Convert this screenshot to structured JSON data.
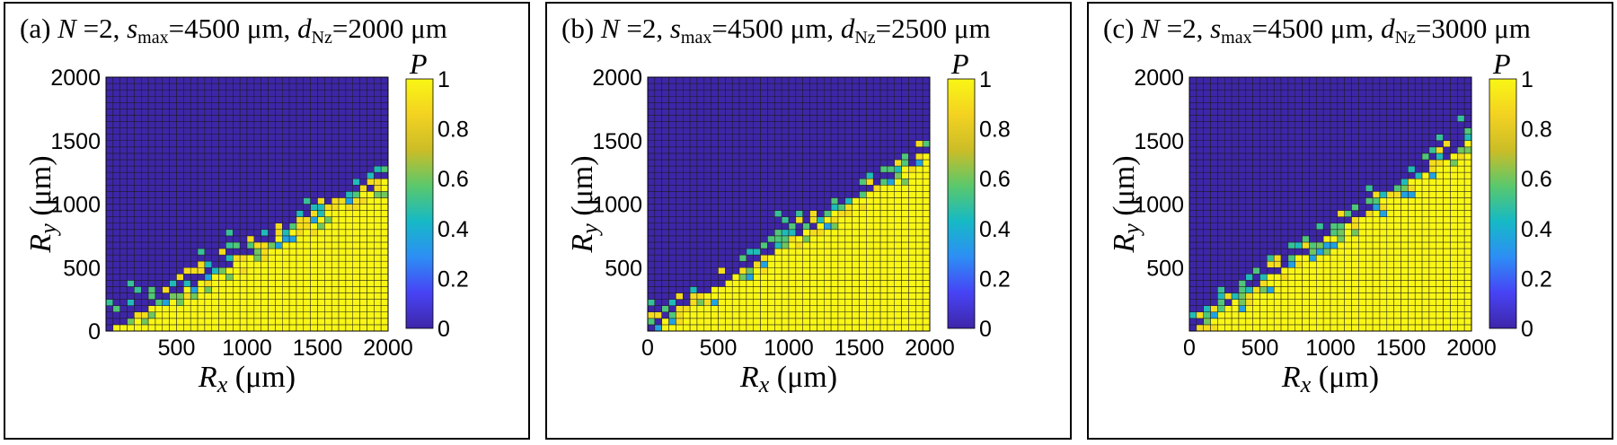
{
  "colorbar": {
    "label": "P",
    "ticks": [
      "0",
      "0.2",
      "0.4",
      "0.6",
      "0.8",
      "1"
    ],
    "min": 0,
    "max": 1
  },
  "palette": [
    "#3e26a8",
    "#4743f5",
    "#2d8ef5",
    "#16b9c6",
    "#5ac86c",
    "#cbbd27",
    "#f3d221",
    "#f9f615"
  ],
  "charts": [
    {
      "panel_id": "a",
      "title": {
        "prefix": "(a) ",
        "N": "N",
        "eq1": " =2, ",
        "s": "s",
        "smax_sub": "max",
        "smax_val": "=4500 μm, ",
        "d": "d",
        "d_sub": "Nz",
        "d_val": "=2000 μm"
      },
      "y_ticks": [
        "0",
        "500",
        "1000",
        "1500",
        "2000"
      ],
      "x_ticks": [
        "500",
        "1000",
        "1500",
        "2000"
      ],
      "xlabel": {
        "sym": "R",
        "sub": "x",
        "unit": " (μm)"
      },
      "ylabel": {
        "sym": "R",
        "sub": "y",
        "unit": " (μm)"
      }
    },
    {
      "panel_id": "b",
      "title": {
        "prefix": "(b) ",
        "N": "N",
        "eq1": " =2, ",
        "s": "s",
        "smax_sub": "max",
        "smax_val": "=4500 μm, ",
        "d": "d",
        "d_sub": "Nz",
        "d_val": "=2500 μm"
      },
      "y_ticks": [
        "500",
        "1000",
        "1500",
        "2000"
      ],
      "x_ticks": [
        "0",
        "500",
        "1000",
        "1500",
        "2000"
      ],
      "xlabel": {
        "sym": "R",
        "sub": "x",
        "unit": " (μm)"
      },
      "ylabel": {
        "sym": "R",
        "sub": "y",
        "unit": " (μm)"
      }
    },
    {
      "panel_id": "c",
      "title": {
        "prefix": "(c) ",
        "N": "N",
        "eq1": " =2, ",
        "s": "s",
        "smax_sub": "max",
        "smax_val": "=4500 μm, ",
        "d": "d",
        "d_sub": "Nz",
        "d_val": "=3000 μm"
      },
      "y_ticks": [
        "500",
        "1000",
        "1500",
        "2000"
      ],
      "x_ticks": [
        "0",
        "500",
        "1000",
        "1500",
        "2000"
      ],
      "xlabel": {
        "sym": "R",
        "sub": "x",
        "unit": " (μm)"
      },
      "ylabel": {
        "sym": "R",
        "sub": "y",
        "unit": " (μm)"
      }
    }
  ],
  "chart_data": [
    {
      "type": "heatmap",
      "panel": "a",
      "x_range": [
        0,
        2000
      ],
      "y_range": [
        0,
        2000
      ],
      "grid_n": 40,
      "value_range": [
        0,
        1
      ],
      "boundary_slope_dRy_dRx": 0.6,
      "transition_band_um": 150,
      "description_values": "P=1 below boundary (Ry < ~0.6·Rx), P=0 above; scattered intermediate values near boundary"
    },
    {
      "type": "heatmap",
      "panel": "b",
      "x_range": [
        0,
        2000
      ],
      "y_range": [
        0,
        2000
      ],
      "grid_n": 40,
      "value_range": [
        0,
        1
      ],
      "boundary_slope_dRy_dRx": 0.7,
      "transition_band_um": 150
    },
    {
      "type": "heatmap",
      "panel": "c",
      "x_range": [
        0,
        2000
      ],
      "y_range": [
        0,
        2000
      ],
      "grid_n": 40,
      "value_range": [
        0,
        1
      ],
      "boundary_slope_dRy_dRx": 0.75,
      "transition_band_um": 150
    }
  ]
}
